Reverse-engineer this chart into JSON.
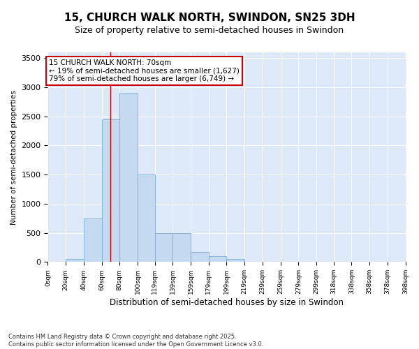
{
  "title": "15, CHURCH WALK NORTH, SWINDON, SN25 3DH",
  "subtitle": "Size of property relative to semi-detached houses in Swindon",
  "xlabel": "Distribution of semi-detached houses by size in Swindon",
  "ylabel": "Number of semi-detached properties",
  "bar_edges": [
    0,
    20,
    40,
    60,
    80,
    100,
    119,
    139,
    159,
    179,
    199,
    219,
    239,
    259,
    279,
    299,
    318,
    338,
    358,
    378,
    398
  ],
  "bar_heights": [
    0,
    50,
    750,
    2450,
    2900,
    1500,
    500,
    500,
    175,
    100,
    50,
    0,
    0,
    0,
    0,
    0,
    0,
    0,
    0,
    0
  ],
  "bar_color": "#c5d9f0",
  "bar_edge_color": "#7aafd4",
  "vline_x": 70,
  "vline_color": "#cc0000",
  "annotation_text": "15 CHURCH WALK NORTH: 70sqm\n← 19% of semi-detached houses are smaller (1,627)\n79% of semi-detached houses are larger (6,749) →",
  "annotation_box_color": "#ffffff",
  "annotation_border_color": "#cc0000",
  "ylim": [
    0,
    3600
  ],
  "yticks": [
    0,
    500,
    1000,
    1500,
    2000,
    2500,
    3000,
    3500
  ],
  "background_color": "#dde8f8",
  "footer_text": "Contains HM Land Registry data © Crown copyright and database right 2025.\nContains public sector information licensed under the Open Government Licence v3.0.",
  "title_fontsize": 11,
  "subtitle_fontsize": 9,
  "annotation_fontsize": 7.5,
  "ylabel_fontsize": 7.5,
  "xlabel_fontsize": 8.5,
  "tick_labels": [
    "0sqm",
    "20sqm",
    "40sqm",
    "60sqm",
    "80sqm",
    "100sqm",
    "119sqm",
    "139sqm",
    "159sqm",
    "179sqm",
    "199sqm",
    "219sqm",
    "239sqm",
    "259sqm",
    "279sqm",
    "299sqm",
    "318sqm",
    "338sqm",
    "358sqm",
    "378sqm",
    "398sqm"
  ]
}
